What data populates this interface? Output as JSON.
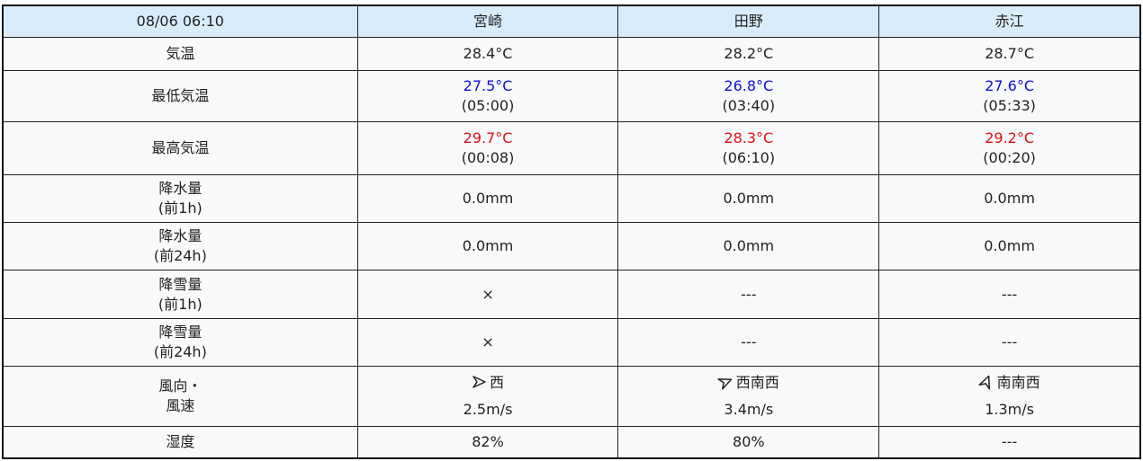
{
  "header": {
    "datetime": "08/06 06:10",
    "stations": [
      "宮崎",
      "田野",
      "赤江"
    ]
  },
  "rows": {
    "temp": {
      "label": "気温",
      "values": [
        "28.4°C",
        "28.2°C",
        "28.7°C"
      ]
    },
    "min": {
      "label": "最低気温",
      "values": [
        "27.5°C",
        "26.8°C",
        "27.6°C"
      ],
      "times": [
        "(05:00)",
        "(03:40)",
        "(05:33)"
      ]
    },
    "max": {
      "label": "最高気温",
      "values": [
        "29.7°C",
        "28.3°C",
        "29.2°C"
      ],
      "times": [
        "(00:08)",
        "(06:10)",
        "(00:20)"
      ]
    },
    "rain1": {
      "label1": "降水量",
      "label2": "(前1h)",
      "values": [
        "0.0mm",
        "0.0mm",
        "0.0mm"
      ]
    },
    "rain24": {
      "label1": "降水量",
      "label2": "(前24h)",
      "values": [
        "0.0mm",
        "0.0mm",
        "0.0mm"
      ]
    },
    "snow1": {
      "label1": "降雪量",
      "label2": "(前1h)",
      "values": [
        "×",
        "---",
        "---"
      ]
    },
    "snow24": {
      "label1": "降雪量",
      "label2": "(前24h)",
      "values": [
        "×",
        "---",
        "---"
      ]
    },
    "wind": {
      "label1": "風向・",
      "label2": "風速",
      "dirs": [
        "西",
        "西南西",
        "南南西"
      ],
      "speeds": [
        "2.5m/s",
        "3.4m/s",
        "1.3m/s"
      ],
      "icons": [
        "wind-arrow-west",
        "wind-arrow-wsw",
        "wind-arrow-ssw"
      ]
    },
    "humidity": {
      "label": "湿度",
      "values": [
        "82%",
        "80%",
        "---"
      ]
    }
  },
  "colors": {
    "header_bg": "#d9ecfc",
    "min_temp": "#1010d0",
    "max_temp": "#e01010"
  }
}
